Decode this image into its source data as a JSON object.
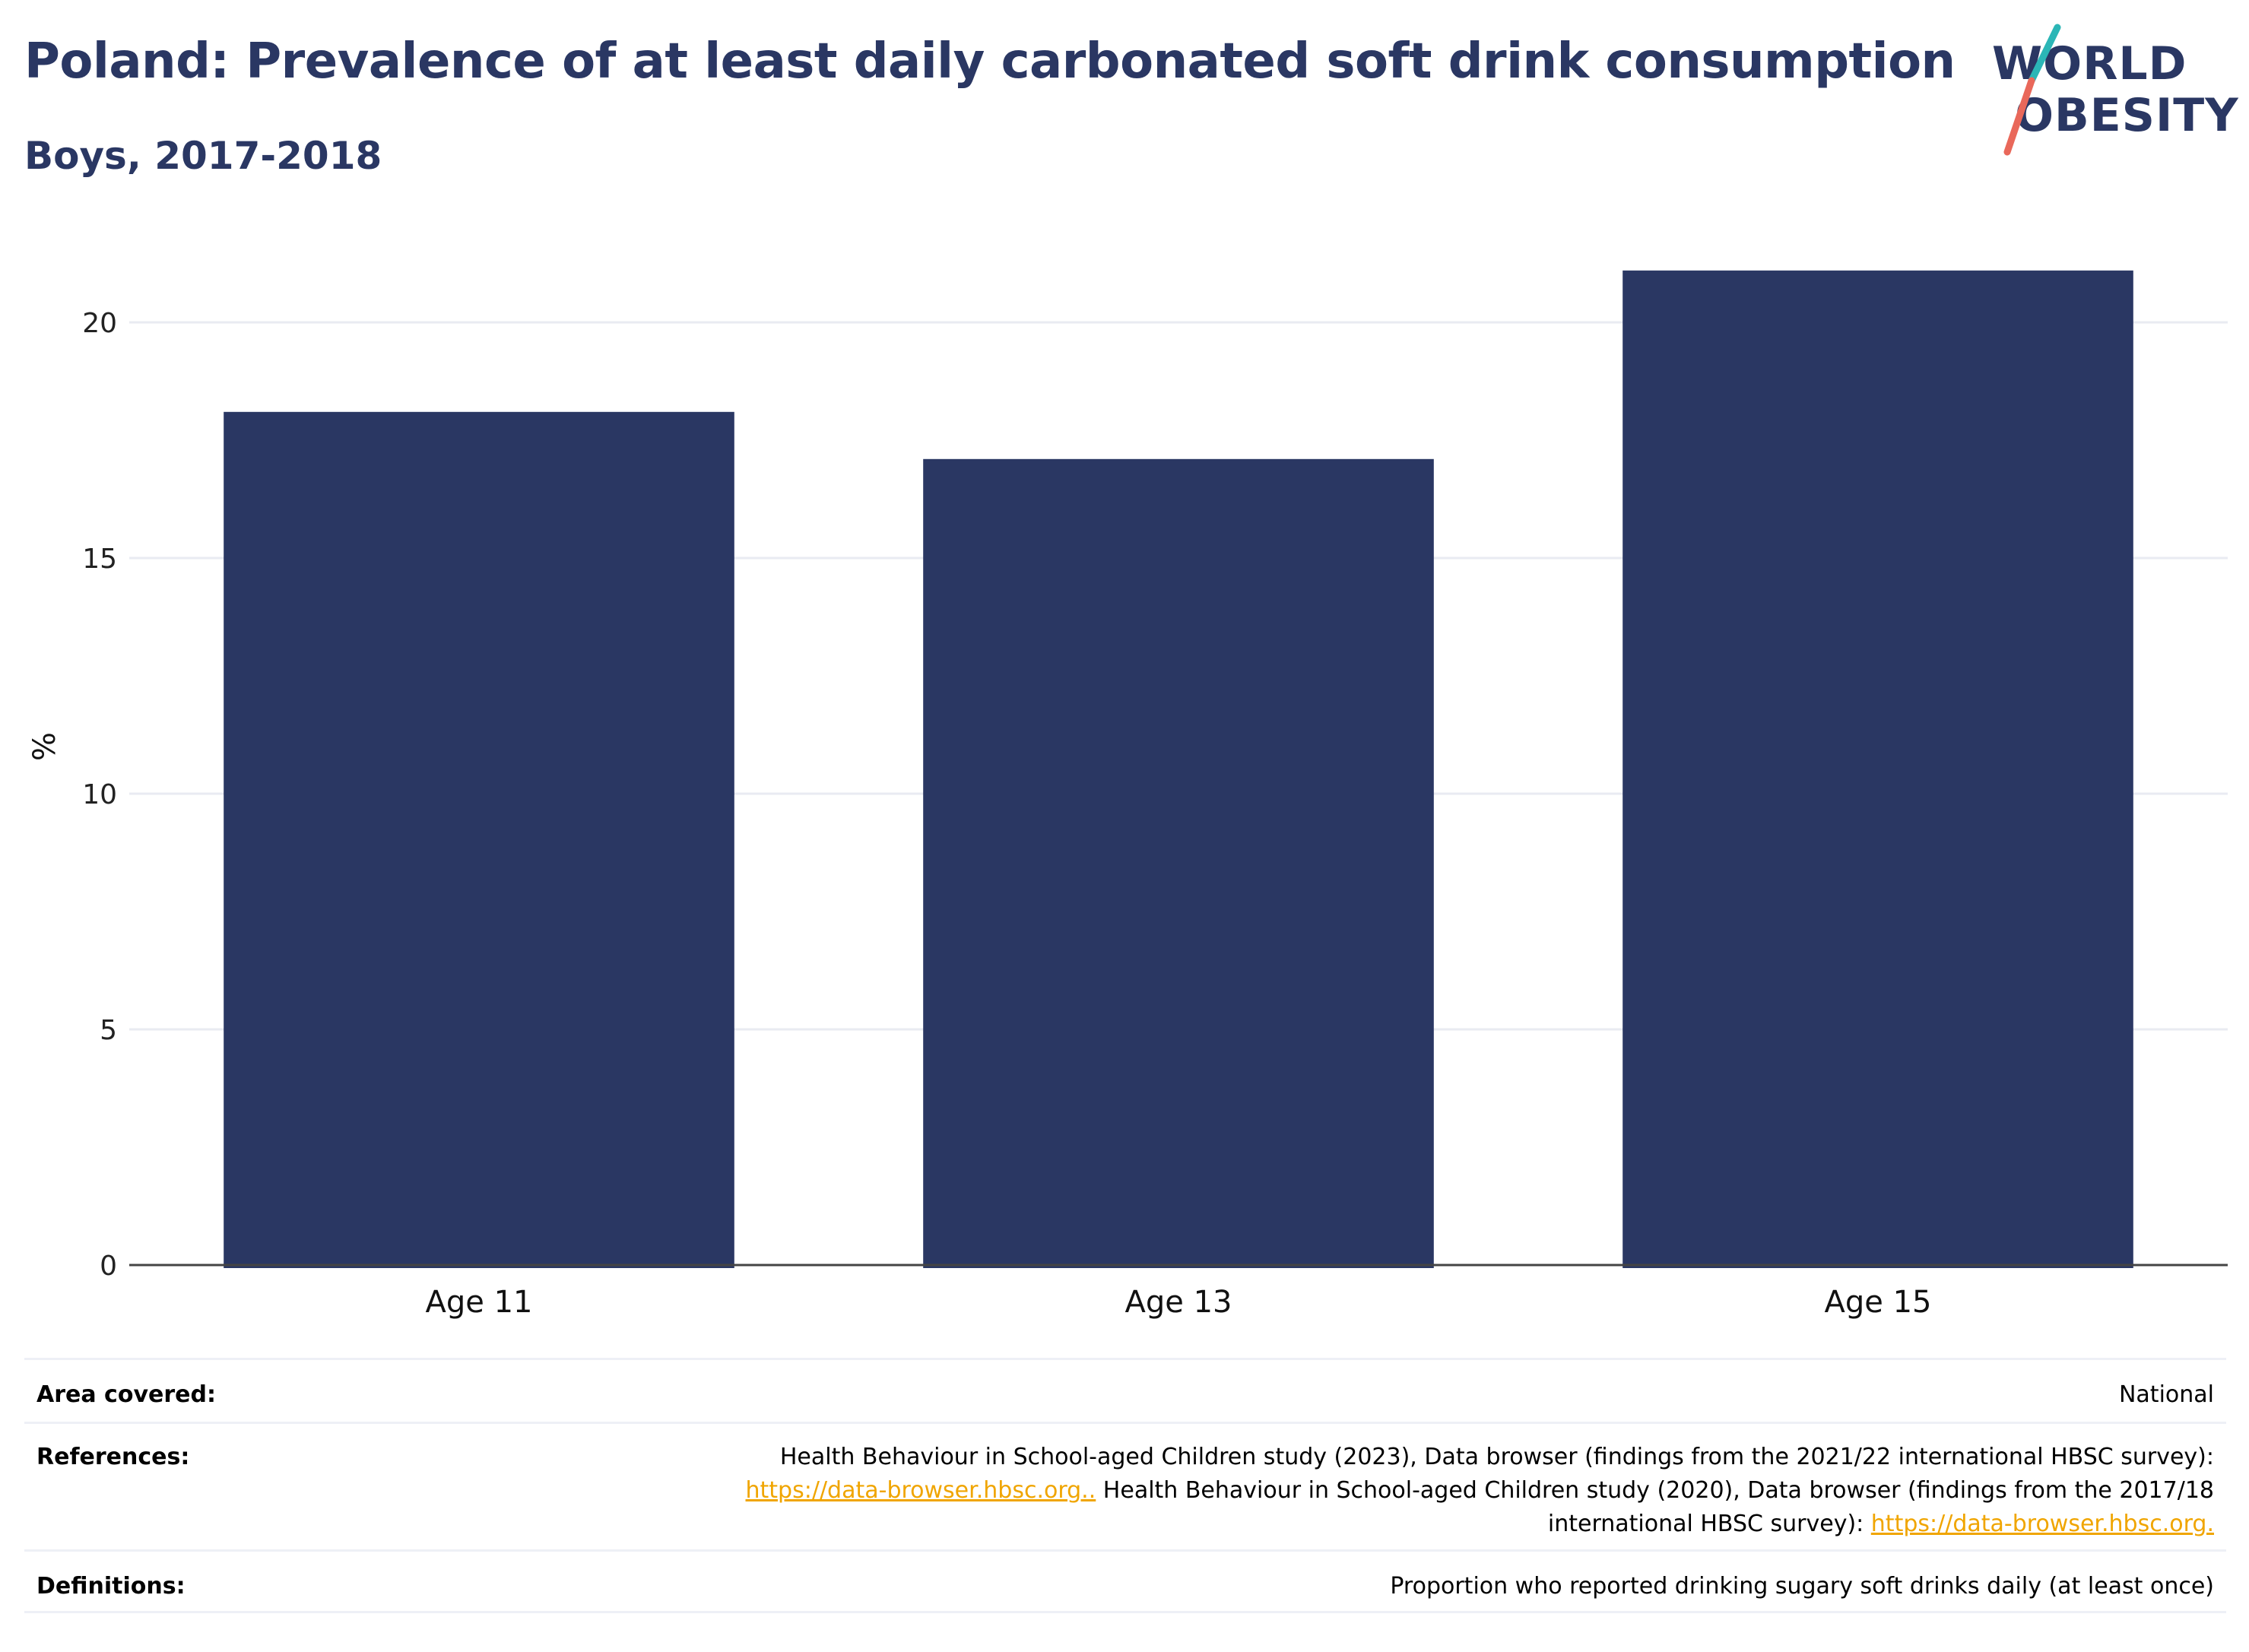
{
  "header": {
    "title": "Poland: Prevalence of at least daily carbonated soft drink consumption",
    "subtitle": "Boys, 2017-2018"
  },
  "logo": {
    "line1": "WORLD",
    "line2": "OBESITY",
    "accent1": "#2bb6b6",
    "accent2": "#e9685a"
  },
  "chart_data": {
    "type": "bar",
    "categories": [
      "Age 11",
      "Age 13",
      "Age 15"
    ],
    "values": [
      18.1,
      17.1,
      21.1
    ],
    "ylabel": "%",
    "ylim": [
      0,
      22
    ],
    "yticks": [
      0,
      5,
      10,
      15,
      20
    ],
    "grid": true,
    "bar_color": "#2a3763"
  },
  "footer": {
    "area_label": "Area covered:",
    "area_value": "National",
    "references_label": "References:",
    "references_text_1": "Health Behaviour in School-aged Children study (2023), Data browser (findings from the 2021/22 international HBSC survey):",
    "references_link_1": "https://data-browser.hbsc.org..",
    "references_text_2": " Health Behaviour in School-aged Children study (2020), Data browser (findings from the 2017/18",
    "references_text_3": "international HBSC survey): ",
    "references_link_2": "https://data-browser.hbsc.org.",
    "definitions_label": "Definitions:",
    "definitions_value": "Proportion who reported drinking sugary soft drinks daily (at least once)",
    "link_color": "#f0a500"
  }
}
